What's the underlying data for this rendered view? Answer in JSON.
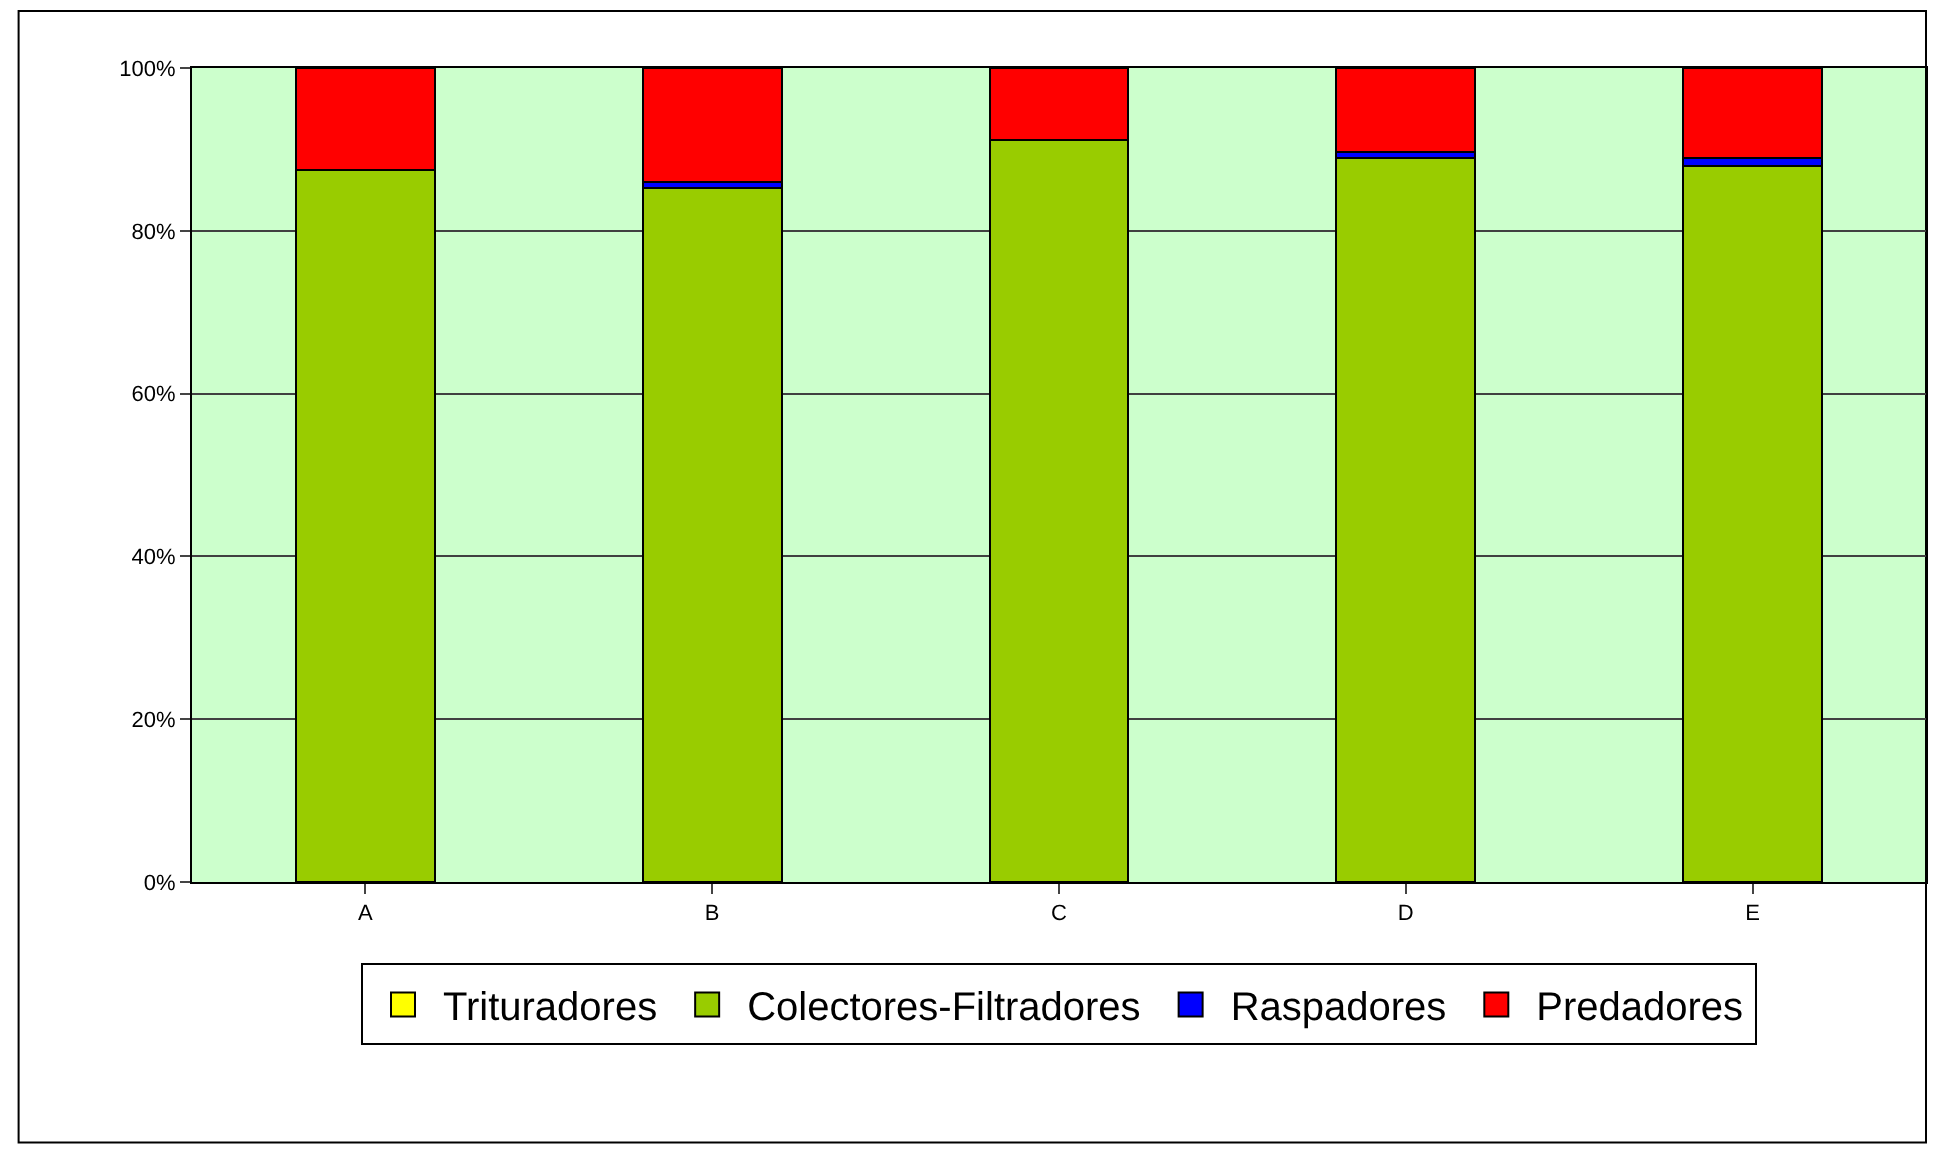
{
  "chart_data": {
    "type": "bar",
    "stacked": true,
    "categories": [
      "A",
      "B",
      "C",
      "D",
      "E"
    ],
    "series": [
      {
        "name": "Trituradores",
        "color": "#ffff00",
        "values": [
          0,
          0,
          0,
          0,
          0
        ]
      },
      {
        "name": "Colectores-Filtradores",
        "color": "#99cc00",
        "values": [
          87.5,
          85.2,
          91.1,
          88.9,
          88.0
        ]
      },
      {
        "name": "Raspadores",
        "color": "#0000ff",
        "values": [
          0,
          0.8,
          0,
          0.8,
          1.0
        ]
      },
      {
        "name": "Predadores",
        "color": "#ff0000",
        "values": [
          12.5,
          14.0,
          8.9,
          10.3,
          11.0
        ]
      }
    ],
    "ylim": [
      0,
      100
    ],
    "yticks": [
      {
        "value": 0,
        "label": "0%"
      },
      {
        "value": 20,
        "label": "20%"
      },
      {
        "value": 40,
        "label": "40%"
      },
      {
        "value": 60,
        "label": "60%"
      },
      {
        "value": 80,
        "label": "80%"
      },
      {
        "value": 100,
        "label": "100%"
      }
    ],
    "grid": true,
    "legend": "bottom"
  }
}
